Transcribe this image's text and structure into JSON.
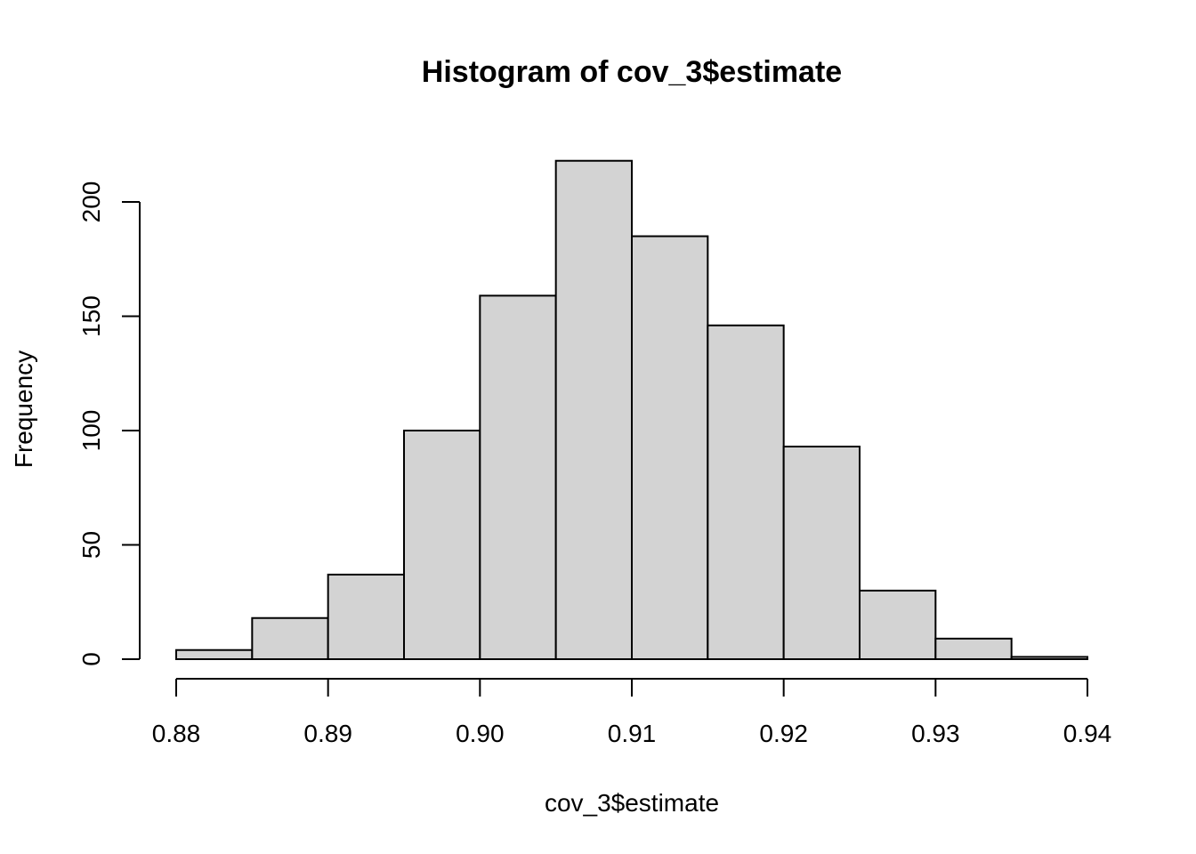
{
  "chart_data": {
    "type": "bar",
    "subtype": "histogram",
    "title": "Histogram of cov_3$estimate",
    "xlabel": "cov_3$estimate",
    "ylabel": "Frequency",
    "bins": [
      {
        "from": 0.88,
        "to": 0.885,
        "count": 4
      },
      {
        "from": 0.885,
        "to": 0.89,
        "count": 18
      },
      {
        "from": 0.89,
        "to": 0.895,
        "count": 37
      },
      {
        "from": 0.895,
        "to": 0.9,
        "count": 100
      },
      {
        "from": 0.9,
        "to": 0.905,
        "count": 159
      },
      {
        "from": 0.905,
        "to": 0.91,
        "count": 218
      },
      {
        "from": 0.91,
        "to": 0.915,
        "count": 185
      },
      {
        "from": 0.915,
        "to": 0.92,
        "count": 146
      },
      {
        "from": 0.92,
        "to": 0.925,
        "count": 93
      },
      {
        "from": 0.925,
        "to": 0.93,
        "count": 30
      },
      {
        "from": 0.93,
        "to": 0.935,
        "count": 9
      },
      {
        "from": 0.935,
        "to": 0.94,
        "count": 1
      }
    ],
    "xlim": [
      0.88,
      0.94
    ],
    "ylim": [
      0,
      218
    ],
    "x_ticks": [
      0.88,
      0.89,
      0.9,
      0.91,
      0.92,
      0.93,
      0.94
    ],
    "x_tick_labels": [
      "0.88",
      "0.89",
      "0.90",
      "0.91",
      "0.92",
      "0.93",
      "0.94"
    ],
    "y_ticks": [
      0,
      50,
      100,
      150,
      200
    ],
    "y_tick_labels": [
      "0",
      "50",
      "100",
      "150",
      "200"
    ],
    "bar_color": "#d3d3d3",
    "bar_edge_color": "#000000",
    "grid": false,
    "legend": "none"
  }
}
